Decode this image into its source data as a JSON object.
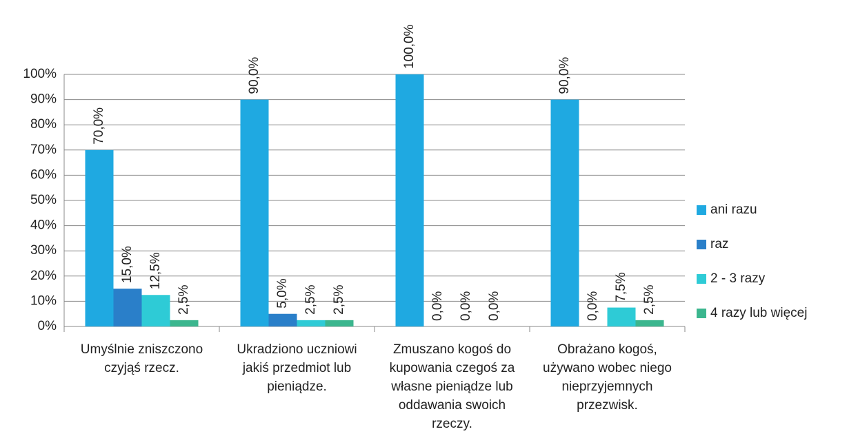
{
  "chart_data": {
    "type": "bar",
    "categories": [
      "Umyślnie zniszczono czyjąś rzecz.",
      "Ukradziono uczniowi jakiś przedmiot lub pieniądze.",
      "Zmuszano kogoś do kupowania czegoś za własne pieniądze lub oddawania swoich rzeczy.",
      "Obrażano kogoś, używano wobec niego nieprzyjemnych przezwisk."
    ],
    "series": [
      {
        "name": "ani razu",
        "color": "#1fa9e1",
        "values": [
          70,
          90,
          100,
          90
        ],
        "value_labels": [
          "70,0%",
          "90,0%",
          "100,0%",
          "90,0%"
        ]
      },
      {
        "name": "raz",
        "color": "#2a7fc9",
        "values": [
          15,
          5,
          0,
          0
        ],
        "value_labels": [
          "15,0%",
          "5,0%",
          "0,0%",
          "0,0%"
        ]
      },
      {
        "name": "2 - 3 razy",
        "color": "#2ecbd6",
        "values": [
          12.5,
          2.5,
          0,
          7.5
        ],
        "value_labels": [
          "12,5%",
          "2,5%",
          "0,0%",
          "7,5%"
        ]
      },
      {
        "name": "4 razy lub więcej",
        "color": "#3bb68e",
        "values": [
          2.5,
          2.5,
          0,
          2.5
        ],
        "value_labels": [
          "2,5%",
          "2,5%",
          "0,0%",
          "2,5%"
        ]
      }
    ],
    "ylim": [
      0,
      100
    ],
    "yticks": [
      {
        "value": 0,
        "label": "0%"
      },
      {
        "value": 10,
        "label": "10%"
      },
      {
        "value": 20,
        "label": "20%"
      },
      {
        "value": 30,
        "label": "30%"
      },
      {
        "value": 40,
        "label": "40%"
      },
      {
        "value": 50,
        "label": "50%"
      },
      {
        "value": 60,
        "label": "60%"
      },
      {
        "value": 70,
        "label": "70%"
      },
      {
        "value": 80,
        "label": "80%"
      },
      {
        "value": 90,
        "label": "90%"
      },
      {
        "value": 100,
        "label": "100%"
      }
    ],
    "grid": true,
    "legend": "right"
  }
}
